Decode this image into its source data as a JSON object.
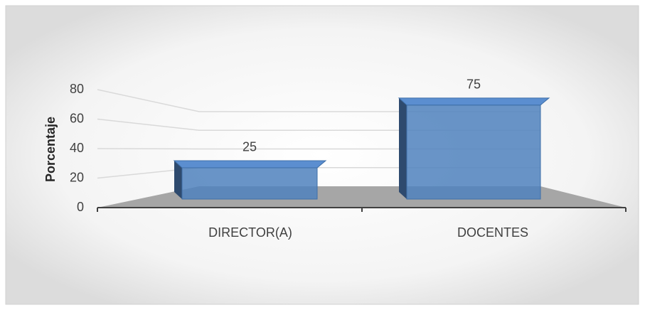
{
  "chart_data": {
    "type": "bar3d",
    "y_label": "Porcentaje",
    "categories": [
      "DIRECTOR(A)",
      "DOCENTES"
    ],
    "values": [
      25,
      75
    ],
    "color": "#4f81bd",
    "ylim": [
      0,
      80
    ],
    "yticks": [
      0,
      20,
      40,
      60,
      80
    ],
    "grid": true
  }
}
